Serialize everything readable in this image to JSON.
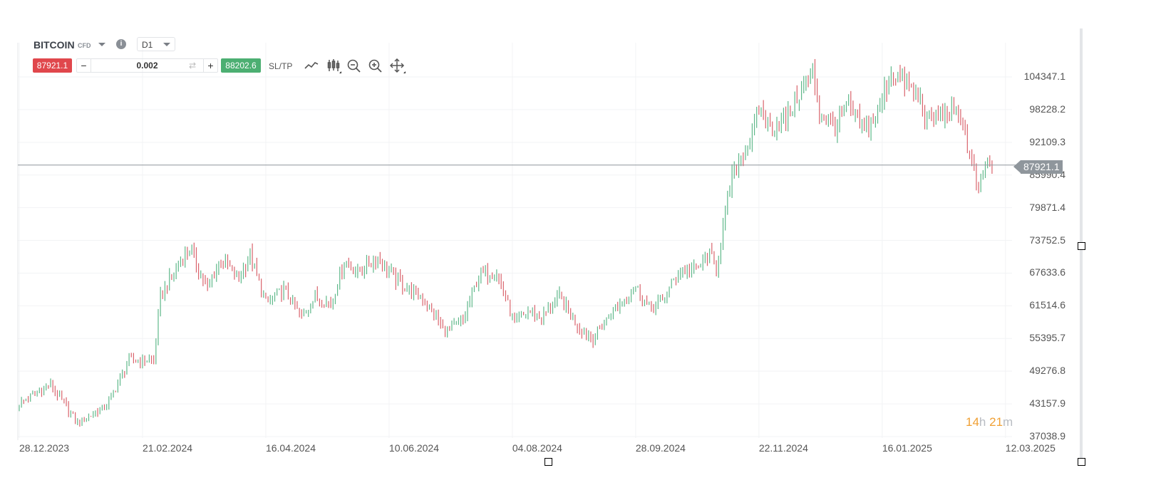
{
  "header": {
    "symbol": "BITCOIN",
    "instrument_type": "CFD",
    "info_icon": "i",
    "timeframe": "D1"
  },
  "trade": {
    "sell_price": "87921.1",
    "quantity": "0.002",
    "minus": "−",
    "plus": "+",
    "swap_icon": "⇄",
    "buy_price": "88202.6",
    "sltp_label": "SL/TP"
  },
  "tools": [
    "line-chart-icon",
    "candlestick-icon",
    "zoom-out-icon",
    "zoom-in-icon",
    "move-icon"
  ],
  "colors": {
    "up": "#5fb88a",
    "down": "#d9636c",
    "sell": "#e0474c",
    "buy": "#4caf72",
    "timer": "#f0a034"
  },
  "countdown": {
    "hours": "14",
    "h": "h",
    "minutes": "21",
    "m": "m"
  },
  "current_price_label": "87921.1",
  "chart_data": {
    "type": "candlestick",
    "symbol": "BITCOIN",
    "y_ticks": [
      "104347.1",
      "98228.2",
      "92109.3",
      "85990.4",
      "79871.4",
      "73752.5",
      "67633.6",
      "61514.6",
      "55395.7",
      "49276.8",
      "43157.9",
      "37038.9"
    ],
    "x_ticks": [
      "28.12.2023",
      "21.02.2024",
      "16.04.2024",
      "10.06.2024",
      "04.08.2024",
      "28.09.2024",
      "22.11.2024",
      "16.01.2025",
      "12.03.2025"
    ],
    "x_tick_days": [
      0,
      55,
      110,
      165,
      220,
      275,
      330,
      385,
      440
    ],
    "ylim": [
      37038.9,
      104347.1
    ],
    "current_price": 87921.1,
    "close_waypoints_day_price": [
      [
        0,
        43200
      ],
      [
        14,
        46700
      ],
      [
        26,
        39500
      ],
      [
        39,
        42800
      ],
      [
        49,
        51300
      ],
      [
        60,
        51300
      ],
      [
        63,
        63200
      ],
      [
        69,
        67800
      ],
      [
        76,
        72400
      ],
      [
        84,
        64500
      ],
      [
        90,
        70500
      ],
      [
        98,
        66500
      ],
      [
        103,
        71000
      ],
      [
        110,
        61900
      ],
      [
        118,
        64500
      ],
      [
        126,
        59300
      ],
      [
        132,
        63200
      ],
      [
        139,
        61900
      ],
      [
        145,
        69800
      ],
      [
        151,
        67800
      ],
      [
        160,
        70500
      ],
      [
        168,
        66500
      ],
      [
        176,
        63900
      ],
      [
        182,
        61900
      ],
      [
        190,
        56600
      ],
      [
        198,
        58600
      ],
      [
        205,
        67200
      ],
      [
        213,
        67800
      ],
      [
        221,
        57900
      ],
      [
        227,
        60600
      ],
      [
        233,
        59300
      ],
      [
        241,
        63200
      ],
      [
        249,
        57900
      ],
      [
        256,
        55300
      ],
      [
        265,
        60600
      ],
      [
        275,
        65200
      ],
      [
        281,
        61200
      ],
      [
        287,
        62500
      ],
      [
        294,
        67800
      ],
      [
        302,
        68500
      ],
      [
        308,
        71000
      ],
      [
        311,
        68500
      ],
      [
        314,
        76400
      ],
      [
        318,
        85600
      ],
      [
        322,
        89600
      ],
      [
        327,
        92900
      ],
      [
        330,
        98800
      ],
      [
        335,
        94900
      ],
      [
        342,
        96200
      ],
      [
        348,
        101400
      ],
      [
        354,
        105400
      ],
      [
        357,
        97500
      ],
      [
        364,
        94900
      ],
      [
        370,
        98800
      ],
      [
        377,
        94200
      ],
      [
        383,
        97500
      ],
      [
        389,
        105400
      ],
      [
        396,
        102800
      ],
      [
        402,
        100100
      ],
      [
        405,
        96200
      ],
      [
        411,
        97500
      ],
      [
        420,
        97500
      ],
      [
        424,
        89600
      ],
      [
        428,
        83000
      ],
      [
        431,
        88300
      ],
      [
        434,
        87900
      ]
    ]
  }
}
